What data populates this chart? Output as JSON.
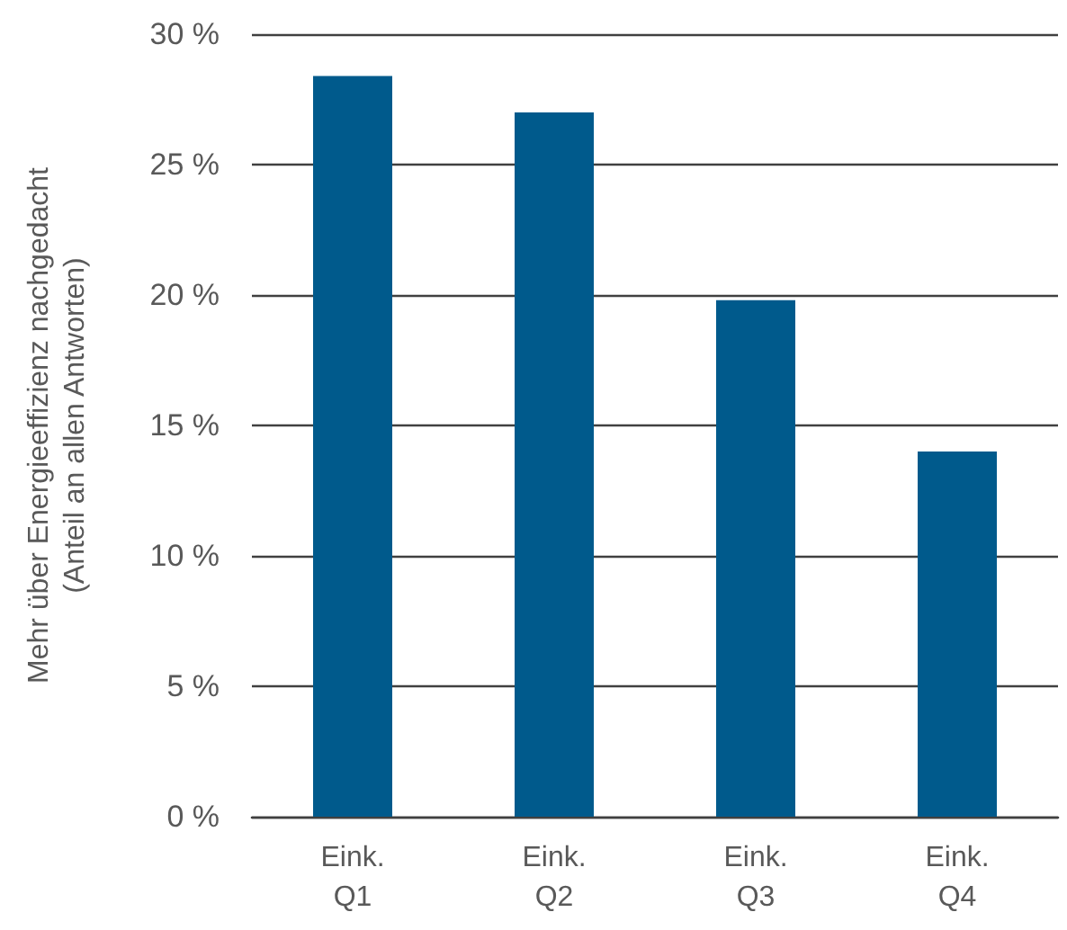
{
  "chart_data": {
    "type": "bar",
    "ylabel": "Mehr über Energieeffizienz nachgedacht\n(Anteil an allen Antworten)",
    "categories": [
      "Eink.\nQ1",
      "Eink.\nQ2",
      "Eink.\nQ3",
      "Eink.\nQ4"
    ],
    "values": [
      28.4,
      27.0,
      19.8,
      14.0
    ],
    "color": "#005a8c",
    "ylim": [
      0,
      30
    ],
    "yticks": [
      {
        "value": 0,
        "label": "0 %"
      },
      {
        "value": 5,
        "label": "5 %"
      },
      {
        "value": 10,
        "label": "10 %"
      },
      {
        "value": 15,
        "label": "15 %"
      },
      {
        "value": 20,
        "label": "20 %"
      },
      {
        "value": 25,
        "label": "25 %"
      },
      {
        "value": 30,
        "label": "30 %"
      }
    ],
    "grid": "y"
  }
}
